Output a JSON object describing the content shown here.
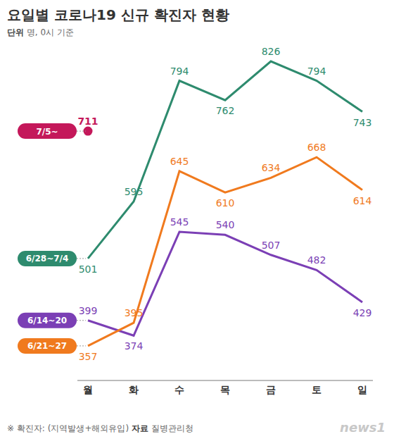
{
  "chart_data": {
    "type": "line",
    "title": "요일별 코로나19 신규 확진자 현황",
    "unit_label": "단위",
    "subtitle": "명, 0시 기준",
    "note": "※ 확진자: (지역발생+해외유입)",
    "source_label": "자료",
    "source": "질병관리청",
    "logo": "news1",
    "categories": [
      "월",
      "화",
      "수",
      "목",
      "금",
      "토",
      "일"
    ],
    "series": [
      {
        "name": "6/14~20",
        "color": "#7b3fb5",
        "marker": "none",
        "values": [
          399,
          374,
          545,
          540,
          507,
          482,
          429
        ]
      },
      {
        "name": "6/21~27",
        "color": "#f07a1e",
        "marker": "none",
        "values": [
          357,
          395,
          645,
          610,
          634,
          668,
          614
        ]
      },
      {
        "name": "6/28~7/4",
        "color": "#2e8b6e",
        "marker": "none",
        "values": [
          501,
          595,
          794,
          762,
          826,
          794,
          743
        ]
      },
      {
        "name": "7/5~",
        "color": "#c4185a",
        "marker": "circle",
        "values": [
          711,
          null,
          null,
          null,
          null,
          null,
          null
        ]
      }
    ],
    "ylim": [
      300,
      840
    ],
    "grid": false,
    "tick_labels": "x",
    "data_labels": true
  }
}
